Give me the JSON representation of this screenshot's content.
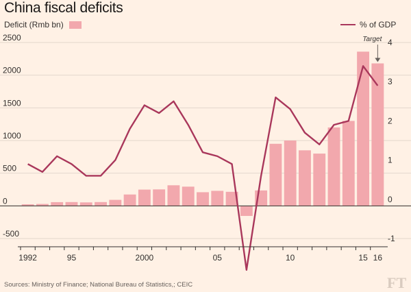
{
  "chart_data": {
    "type": "bar+line",
    "title": "China fiscal deficits",
    "left_axis_label": "Deficit (Rmb bn)",
    "right_axis_label": "% of GDP",
    "x_tick_labels": [
      "1992",
      "95",
      "2000",
      "05",
      "10",
      "15",
      "16"
    ],
    "x_tick_years": [
      1992,
      1995,
      2000,
      2005,
      2010,
      2015,
      2016
    ],
    "y_left_ticks": [
      2500,
      2000,
      1500,
      1000,
      500,
      0,
      -500
    ],
    "y_left_tick_labels": [
      "2500",
      "2000",
      "1500",
      "1000",
      "500",
      "0",
      "-500"
    ],
    "ylim_left": [
      -500,
      2500
    ],
    "y_right_ticks": [
      4,
      3,
      2,
      1,
      0,
      -1
    ],
    "y_right_tick_labels": [
      "4",
      "3",
      "2",
      "1",
      "0",
      "-1"
    ],
    "ylim_right": [
      -1,
      4
    ],
    "years": [
      1992,
      1993,
      1994,
      1995,
      1996,
      1997,
      1998,
      1999,
      2000,
      2001,
      2002,
      2003,
      2004,
      2005,
      2006,
      2007,
      2008,
      2009,
      2010,
      2011,
      2012,
      2013,
      2014,
      2015,
      2016
    ],
    "series": [
      {
        "name": "Deficit (Rmb bn)",
        "kind": "bar",
        "color": "#f2a8ad",
        "values": [
          24,
          29,
          57,
          58,
          53,
          58,
          92,
          174,
          249,
          252,
          315,
          294,
          209,
          230,
          215,
          -154,
          236,
          950,
          1000,
          850,
          800,
          1200,
          1300,
          2360,
          2180
        ]
      },
      {
        "name": "% of GDP",
        "kind": "line",
        "color": "#a9375b",
        "values": [
          0.9,
          0.7,
          1.1,
          0.9,
          0.6,
          0.6,
          1.0,
          1.8,
          2.4,
          2.2,
          2.5,
          1.9,
          1.2,
          1.1,
          0.9,
          -1.8,
          0.6,
          2.6,
          2.3,
          1.7,
          1.4,
          1.9,
          2.0,
          3.4,
          2.9
        ]
      }
    ],
    "annotation": {
      "text": "Target",
      "year": 2016
    },
    "source": "Sources: Ministry of Finance; National Bureau of Statistics,; CEIC",
    "logo": "FT",
    "colors": {
      "background": "#fff1e5",
      "bar": "#f2a8ad",
      "line": "#a9375b",
      "grid": "#e3d7cc",
      "zero_line": "#33302e"
    }
  }
}
